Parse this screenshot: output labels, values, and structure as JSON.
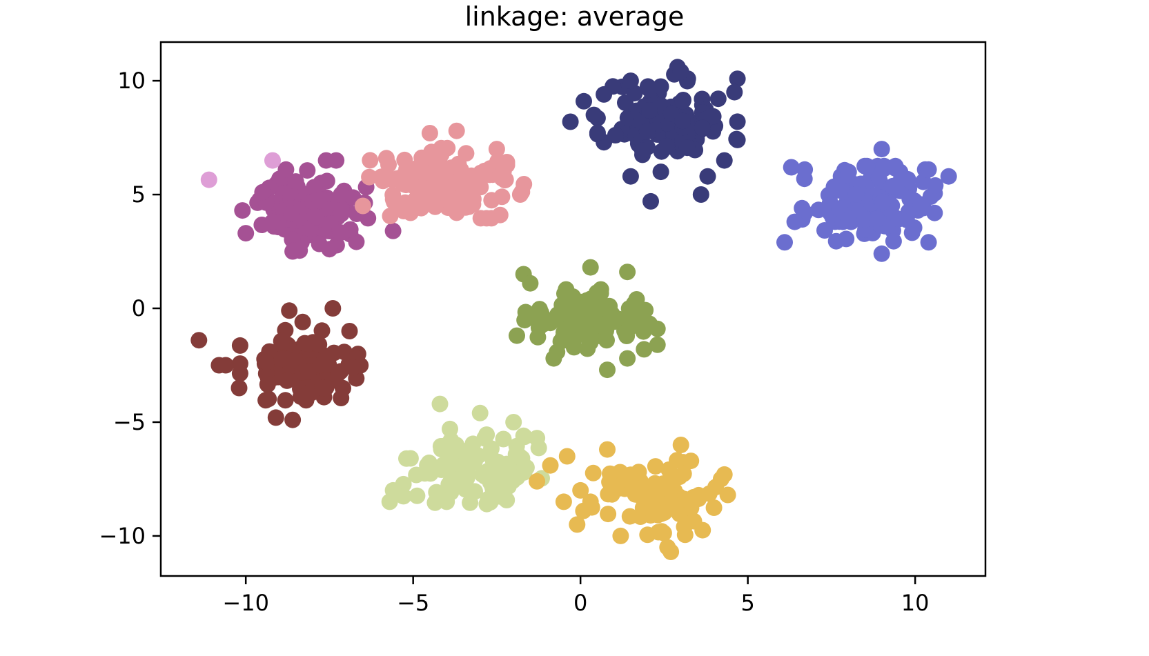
{
  "chart_data": {
    "type": "scatter",
    "title": "linkage: average",
    "xlabel": "",
    "ylabel": "",
    "xlim": [
      -12.54,
      12.1
    ],
    "ylim": [
      -11.76,
      11.7
    ],
    "xticks": [
      -10,
      -5,
      0,
      5,
      10
    ],
    "xtick_labels": [
      "−10",
      "−5",
      "0",
      "5",
      "10"
    ],
    "yticks": [
      -10,
      -5,
      0,
      5,
      10
    ],
    "ytick_labels": [
      "−10",
      "−5",
      "0",
      "5",
      "10"
    ],
    "grid": false,
    "legend": null,
    "marker_radius_px": 12,
    "series": [
      {
        "name": "cluster-navy",
        "color": "#393b79",
        "center": [
          2.6,
          8.3
        ],
        "spread": [
          0.95,
          0.9
        ],
        "count": 100,
        "seed": 11,
        "extra_points": [
          [
            -0.3,
            8.2
          ],
          [
            0.1,
            9.1
          ],
          [
            0.4,
            8.5
          ],
          [
            0.7,
            9.4
          ],
          [
            1.5,
            10.0
          ],
          [
            2.9,
            10.6
          ],
          [
            3.0,
            10.4
          ],
          [
            4.6,
            9.5
          ],
          [
            2.1,
            4.7
          ],
          [
            3.6,
            5.0
          ],
          [
            1.5,
            5.8
          ],
          [
            4.3,
            6.5
          ],
          [
            3.8,
            5.8
          ],
          [
            2.4,
            6.0
          ]
        ]
      },
      {
        "name": "cluster-slateblue",
        "color": "#6b6ecf",
        "center": [
          8.6,
          4.6
        ],
        "spread": [
          0.9,
          0.75
        ],
        "count": 110,
        "seed": 23,
        "extra_points": [
          [
            6.3,
            6.2
          ],
          [
            6.7,
            6.1
          ],
          [
            6.4,
            3.8
          ],
          [
            6.1,
            2.9
          ],
          [
            9.0,
            7.0
          ],
          [
            10.3,
            6.1
          ],
          [
            10.4,
            6.1
          ],
          [
            11.0,
            5.8
          ],
          [
            10.4,
            2.9
          ],
          [
            10.6,
            5.4
          ],
          [
            9.0,
            2.4
          ]
        ]
      },
      {
        "name": "cluster-magenta",
        "color": "#a55194",
        "center": [
          -8.0,
          4.3
        ],
        "spread": [
          0.75,
          0.8
        ],
        "count": 100,
        "seed": 37,
        "extra_points": [
          [
            -10.1,
            4.3
          ],
          [
            -9.5,
            5.1
          ],
          [
            -10.0,
            3.3
          ],
          [
            -8.6,
            2.5
          ],
          [
            -7.5,
            2.6
          ],
          [
            -7.3,
            6.5
          ],
          [
            -7.6,
            6.5
          ],
          [
            -8.8,
            6.1
          ],
          [
            -5.6,
            3.4
          ],
          [
            -9.2,
            3.8
          ]
        ]
      },
      {
        "name": "cluster-pink",
        "color": "#e7969c",
        "center": [
          -4.0,
          5.5
        ],
        "spread": [
          1.05,
          0.7
        ],
        "count": 110,
        "seed": 41,
        "extra_points": [
          [
            -5.9,
            5.6
          ],
          [
            -6.5,
            4.5
          ],
          [
            -5.8,
            6.6
          ],
          [
            -4.5,
            7.7
          ],
          [
            -3.7,
            7.8
          ],
          [
            -2.5,
            7.0
          ],
          [
            -2.3,
            6.0
          ],
          [
            -1.8,
            5.0
          ],
          [
            -2.4,
            4.1
          ],
          [
            -3.7,
            4.2
          ],
          [
            -2.2,
            6.3
          ]
        ]
      },
      {
        "name": "cluster-lavender",
        "color": "#de9ed6",
        "center": [
          -10.1,
          6.1
        ],
        "spread": [
          0,
          0
        ],
        "count": 0,
        "seed": 0,
        "extra_points": [
          [
            -11.1,
            5.65
          ],
          [
            -9.2,
            6.5
          ]
        ]
      },
      {
        "name": "cluster-brown",
        "color": "#843c39",
        "center": [
          -8.3,
          -2.5
        ],
        "spread": [
          0.85,
          0.7
        ],
        "count": 110,
        "seed": 53,
        "extra_points": [
          [
            -11.4,
            -1.4
          ],
          [
            -10.8,
            -2.5
          ],
          [
            -10.6,
            -2.5
          ],
          [
            -10.2,
            -3.5
          ],
          [
            -9.1,
            -4.8
          ],
          [
            -8.6,
            -4.9
          ],
          [
            -7.4,
            0.0
          ],
          [
            -8.3,
            -0.6
          ],
          [
            -8.7,
            -0.1
          ],
          [
            -6.9,
            -1.0
          ],
          [
            -6.7,
            -2.2
          ],
          [
            -6.8,
            -2.6
          ],
          [
            -7.7,
            -3.5
          ]
        ]
      },
      {
        "name": "cluster-olive",
        "color": "#8ca252",
        "center": [
          0.2,
          -0.6
        ],
        "spread": [
          0.85,
          0.65
        ],
        "count": 100,
        "seed": 67,
        "extra_points": [
          [
            -1.7,
            1.5
          ],
          [
            -1.5,
            1.1
          ],
          [
            0.3,
            1.8
          ],
          [
            1.4,
            1.6
          ],
          [
            -1.9,
            -1.2
          ],
          [
            1.9,
            -1.8
          ],
          [
            2.3,
            -0.9
          ],
          [
            2.3,
            -1.6
          ],
          [
            1.4,
            -2.2
          ],
          [
            0.8,
            -2.7
          ],
          [
            -0.8,
            -2.2
          ],
          [
            1.6,
            0.2
          ]
        ]
      },
      {
        "name": "cluster-lightgreen",
        "color": "#cedb9c",
        "center": [
          -3.2,
          -7.0
        ],
        "spread": [
          0.95,
          0.7
        ],
        "count": 100,
        "seed": 79,
        "extra_points": [
          [
            -4.2,
            -4.2
          ],
          [
            -3.0,
            -4.6
          ],
          [
            -2.0,
            -5.0
          ],
          [
            -1.7,
            -5.6
          ],
          [
            -1.3,
            -5.7
          ],
          [
            -5.2,
            -6.6
          ],
          [
            -5.6,
            -8.0
          ],
          [
            -5.7,
            -8.5
          ],
          [
            -4.0,
            -8.5
          ],
          [
            -2.8,
            -8.6
          ],
          [
            -3.9,
            -5.3
          ]
        ]
      },
      {
        "name": "cluster-gold",
        "color": "#e7ba52",
        "center": [
          2.1,
          -8.3
        ],
        "spread": [
          1.0,
          0.75
        ],
        "count": 105,
        "seed": 97,
        "extra_points": [
          [
            -0.9,
            -6.9
          ],
          [
            -0.4,
            -6.5
          ],
          [
            0.8,
            -6.2
          ],
          [
            3.0,
            -6.0
          ],
          [
            3.3,
            -6.7
          ],
          [
            -1.3,
            -7.6
          ],
          [
            -0.5,
            -8.5
          ],
          [
            -0.1,
            -9.5
          ],
          [
            4.2,
            -7.5
          ],
          [
            4.4,
            -8.2
          ],
          [
            2.7,
            -10.7
          ],
          [
            2.6,
            -10.5
          ],
          [
            3.1,
            -9.6
          ],
          [
            1.2,
            -10.0
          ],
          [
            0.0,
            -8.0
          ],
          [
            0.3,
            -8.5
          ]
        ]
      }
    ]
  }
}
